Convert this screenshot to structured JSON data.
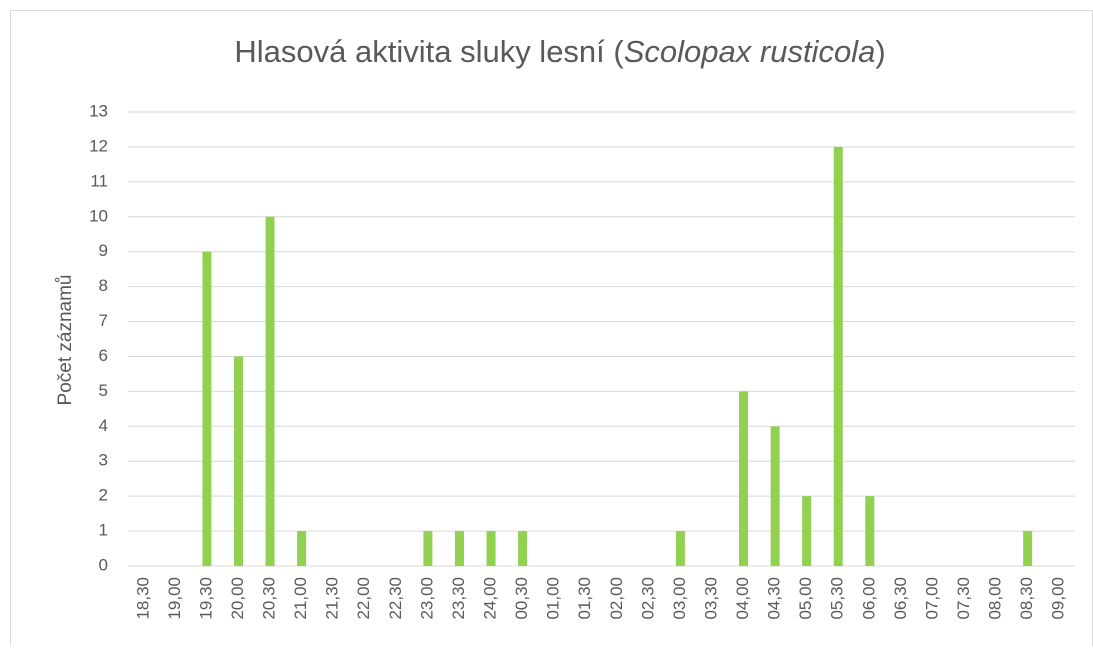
{
  "chart_data": {
    "type": "bar",
    "title": {
      "parts": [
        "Hlasová aktivita sluky lesní (",
        "Scolopax rusticola",
        ")"
      ]
    },
    "y_label": "Počet záznamů",
    "categories": [
      "18,30",
      "19,00",
      "19,30",
      "20,00",
      "20,30",
      "21,00",
      "21,30",
      "22,00",
      "22,30",
      "23,00",
      "23,30",
      "24,00",
      "00,30",
      "01,00",
      "01,30",
      "02,00",
      "02,30",
      "03,00",
      "03,30",
      "04,00",
      "04,30",
      "05,00",
      "05,30",
      "06,00",
      "06,30",
      "07,00",
      "07,30",
      "08,00",
      "08,30",
      "09,00"
    ],
    "values": [
      0,
      0,
      9,
      6,
      10,
      1,
      0,
      0,
      0,
      1,
      1,
      1,
      1,
      0,
      0,
      0,
      0,
      1,
      0,
      5,
      4,
      2,
      12,
      2,
      0,
      0,
      0,
      0,
      1,
      0
    ],
    "color": "#92d050",
    "ylim": [
      0,
      13
    ],
    "yticks": [
      0,
      1,
      2,
      3,
      4,
      5,
      6,
      7,
      8,
      9,
      10,
      11,
      12,
      13
    ],
    "grid": true
  }
}
